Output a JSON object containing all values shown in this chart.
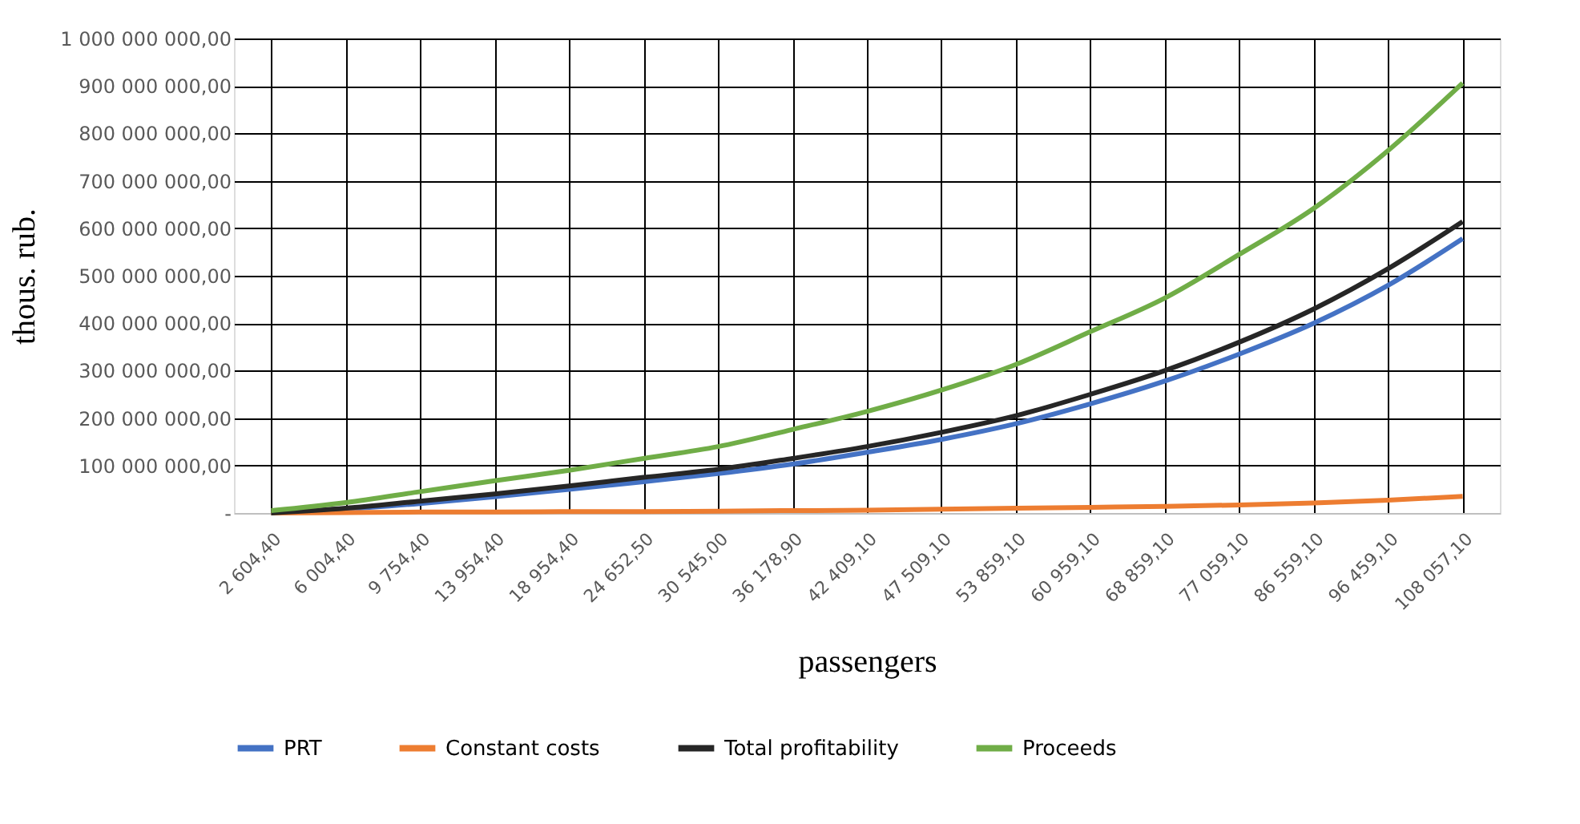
{
  "chart_data": {
    "type": "line",
    "xlabel": "passengers",
    "ylabel": "thous. rub.",
    "categories": [
      "2 604,40",
      "6 004,40",
      "9 754,40",
      "13 954,40",
      "18 954,40",
      "24 652,50",
      "30 545,00",
      "36 178,90",
      "42 409,10",
      "47 509,10",
      "53 859,10",
      "60 959,10",
      "68 859,10",
      "77 059,10",
      "86 559,10",
      "96 459,10",
      "108 057,10"
    ],
    "series": [
      {
        "name": "PRT",
        "color": "#4472c4",
        "values": [
          0,
          8000000,
          20000000,
          34000000,
          50000000,
          66000000,
          83000000,
          103000000,
          128000000,
          155000000,
          188000000,
          230000000,
          278000000,
          335000000,
          400000000,
          480000000,
          578000000
        ]
      },
      {
        "name": "Constant costs",
        "color": "#ed7d31",
        "values": [
          0,
          1000000,
          2000000,
          2000000,
          3000000,
          3000000,
          4000000,
          5000000,
          6000000,
          8000000,
          10000000,
          12000000,
          14000000,
          17000000,
          21000000,
          27000000,
          35000000
        ]
      },
      {
        "name": "Total profitability",
        "color": "#262626",
        "values": [
          0,
          10000000,
          25000000,
          40000000,
          57000000,
          75000000,
          92000000,
          115000000,
          140000000,
          170000000,
          205000000,
          250000000,
          300000000,
          360000000,
          430000000,
          515000000,
          614000000
        ]
      },
      {
        "name": "Proceeds",
        "color": "#70ad47",
        "values": [
          5000000,
          22000000,
          45000000,
          68000000,
          90000000,
          115000000,
          140000000,
          176000000,
          214000000,
          259000000,
          313000000,
          382000000,
          453000000,
          545000000,
          642000000,
          764000000,
          906000000
        ]
      }
    ],
    "ylim": [
      0,
      1000000000
    ],
    "yticks": [
      {
        "value": 0,
        "label": "-"
      },
      {
        "value": 100000000,
        "label": "100 000 000,00"
      },
      {
        "value": 200000000,
        "label": "200 000 000,00"
      },
      {
        "value": 300000000,
        "label": "300 000 000,00"
      },
      {
        "value": 400000000,
        "label": "400 000 000,00"
      },
      {
        "value": 500000000,
        "label": "500 000 000,00"
      },
      {
        "value": 600000000,
        "label": "600 000 000,00"
      },
      {
        "value": 700000000,
        "label": "700 000 000,00"
      },
      {
        "value": 800000000,
        "label": "800 000 000,00"
      },
      {
        "value": 900000000,
        "label": "900 000 000,00"
      },
      {
        "value": 1000000000,
        "label": "1 000 000 000,00"
      }
    ],
    "grid": true,
    "legend": "bottom",
    "marker": "none",
    "line_style": "solid"
  }
}
